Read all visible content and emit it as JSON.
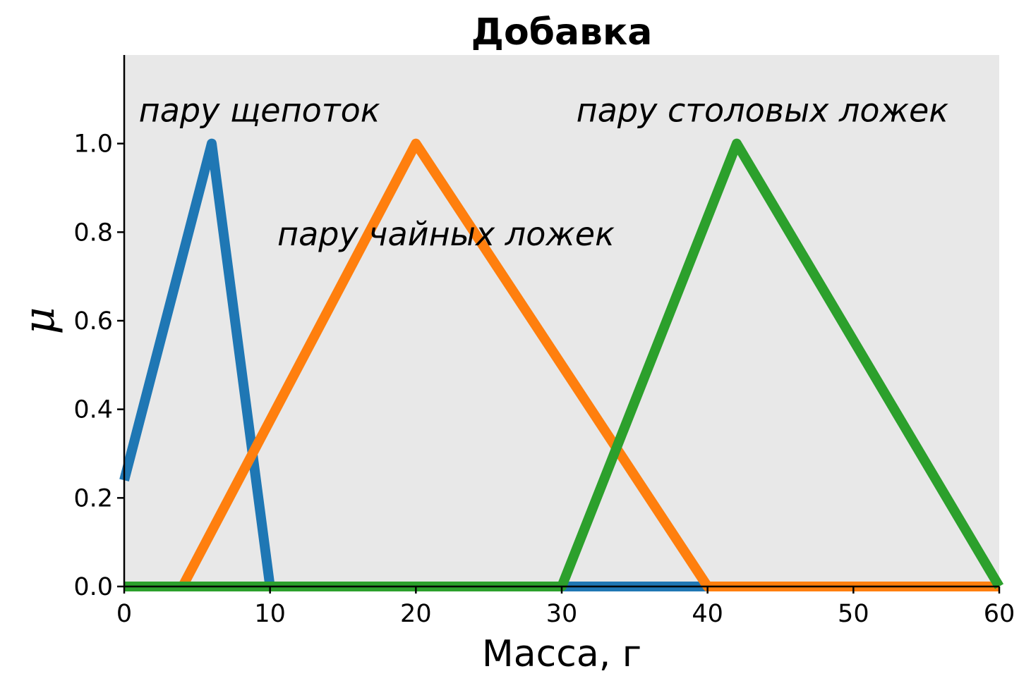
{
  "chart_data": {
    "type": "line",
    "title": "Добавка",
    "xlabel": "Масса, г",
    "ylabel": "μ",
    "xlim": [
      0,
      60
    ],
    "ylim": [
      0,
      1.2
    ],
    "xticks": [
      "0",
      "10",
      "20",
      "30",
      "40",
      "50",
      "60"
    ],
    "xtick_values": [
      0,
      10,
      20,
      30,
      40,
      50,
      60
    ],
    "yticks": [
      "0.0",
      "0.2",
      "0.4",
      "0.6",
      "0.8",
      "1.0"
    ],
    "ytick_values": [
      0,
      0.2,
      0.4,
      0.6,
      0.8,
      1.0
    ],
    "grid": false,
    "background_color": "#e8e8e8",
    "series": [
      {
        "color": "#1f77b4",
        "x": [
          0,
          6,
          10,
          40
        ],
        "y": [
          0.24,
          1.0,
          0.0,
          0.0
        ]
      },
      {
        "color": "#ff7f0e",
        "x": [
          4,
          20,
          40,
          60
        ],
        "y": [
          0.0,
          1.0,
          0.0,
          0.0
        ]
      },
      {
        "color": "#2ca02c",
        "x": [
          0,
          30,
          42,
          60
        ],
        "y": [
          0.0,
          0.0,
          1.0,
          0.0
        ]
      }
    ],
    "annotations": [
      {
        "text": "пару щепоток",
        "x": 1,
        "y": 1.05
      },
      {
        "text": "пару чайных ложек",
        "x": 10.5,
        "y": 0.77
      },
      {
        "text": "пару столовых ложек",
        "x": 31,
        "y": 1.05
      }
    ]
  }
}
